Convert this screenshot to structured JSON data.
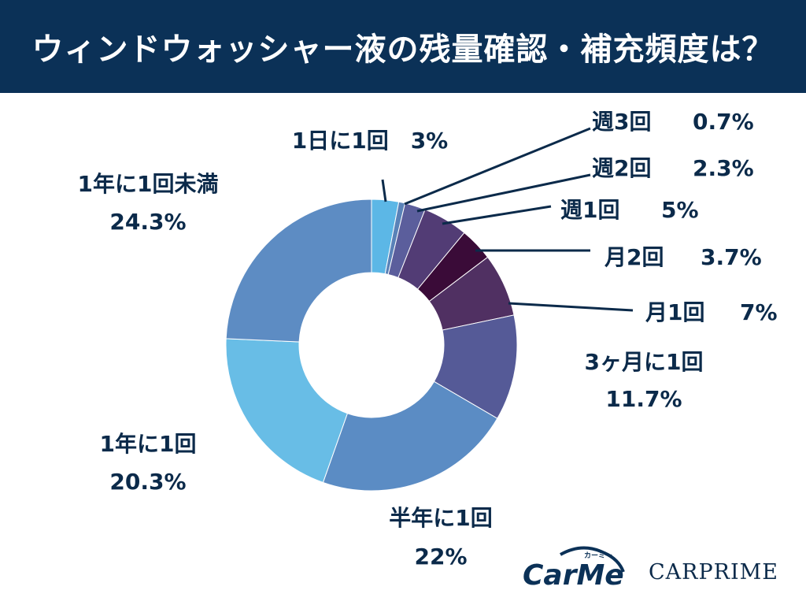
{
  "header": {
    "title": "ウィンドウォッシャー液の残量確認・補充頻度は？"
  },
  "chart_data": {
    "type": "pie",
    "title": "ウィンドウォッシャー液の残量確認・補充頻度は？",
    "donut": true,
    "unit": "%",
    "slices": [
      {
        "label": "1日に1回",
        "value": 3,
        "value_text": "3%",
        "color": "#5cb7e6"
      },
      {
        "label": "週3回",
        "value": 0.7,
        "value_text": "0.7%",
        "color": "#5a82b8"
      },
      {
        "label": "週2回",
        "value": 2.3,
        "value_text": "2.3%",
        "color": "#5b5e9c"
      },
      {
        "label": "週1回",
        "value": 5,
        "value_text": "5%",
        "color": "#523c75"
      },
      {
        "label": "月2回",
        "value": 3.7,
        "value_text": "3.7%",
        "color": "#3a0b38"
      },
      {
        "label": "月1回",
        "value": 7,
        "value_text": "7%",
        "color": "#503062"
      },
      {
        "label": "3ヶ月に1回",
        "value": 11.7,
        "value_text": "11.7%",
        "color": "#555a97"
      },
      {
        "label": "半年に1回",
        "value": 22,
        "value_text": "22%",
        "color": "#5b8cc4"
      },
      {
        "label": "1年に1回",
        "value": 20.3,
        "value_text": "20.3%",
        "color": "#68bde6"
      },
      {
        "label": "1年に1回未満",
        "value": 24.3,
        "value_text": "24.3%",
        "color": "#5d8cc3"
      }
    ]
  },
  "logos": {
    "carme": {
      "main": "CarMe",
      "sub": "カーミー"
    },
    "carprime": "CARPRIME"
  }
}
